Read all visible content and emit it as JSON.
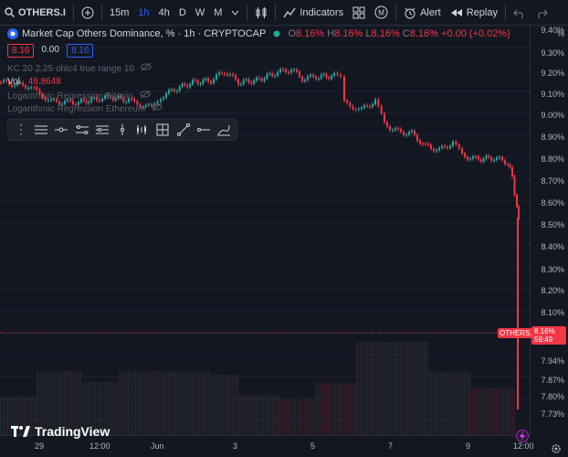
{
  "toolbar": {
    "symbol": "OTHERS.I",
    "intervals": [
      "15m",
      "1h",
      "4h",
      "D",
      "W",
      "M"
    ],
    "active_interval": "1h",
    "indicators_label": "Indicators",
    "alert_label": "Alert",
    "replay_label": "Replay"
  },
  "legend": {
    "title": "Market Cap Others Dominance, % · 1h · CRYPTOCAP",
    "o_label": "O",
    "o_val": "8.16%",
    "h_label": "H",
    "h_val": "8.16%",
    "l_label": "L",
    "l_val": "8.16%",
    "c_label": "C",
    "c_val": "8.16%",
    "change": "+0.00 (+0.02%)"
  },
  "price_box": {
    "bid": "8.16",
    "spread": "0.00",
    "ask": "8.16"
  },
  "indicators": {
    "kc": "KC 20 2.25 ohlc4 true range 10",
    "vol_label": "Vol",
    "vol_value": "49.8648",
    "lr_btc": "Logarithmic Regression Bitcoin",
    "lr_eth": "Logarithmic Regression Ethereum"
  },
  "price_axis": {
    "unit": "%",
    "ticks": [
      "9.40%",
      "9.30%",
      "9.20%",
      "9.10%",
      "9.00%",
      "8.90%",
      "8.80%",
      "8.70%",
      "8.60%",
      "8.50%",
      "8.40%",
      "8.30%",
      "8.20%",
      "8.10%",
      "8.02%",
      "7.94%",
      "7.87%",
      "7.80%",
      "7.73%"
    ],
    "last_label": "OTHERS.D",
    "last_price": "8.16%",
    "countdown": "59:49"
  },
  "time_axis": {
    "ticks": [
      "29",
      "12:00",
      "Jun",
      "3",
      "5",
      "7",
      "9",
      "12:00"
    ]
  },
  "brand": "TradingView",
  "colors": {
    "up": "#26a69a",
    "down": "#f23645",
    "accent": "#2962ff",
    "bg": "#131722"
  }
}
